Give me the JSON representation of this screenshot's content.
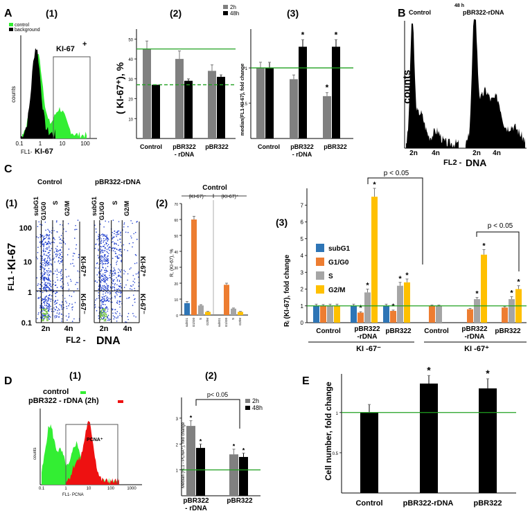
{
  "panel_letters": {
    "a": "A",
    "b": "B",
    "c": "C",
    "d": "D",
    "e": "E"
  },
  "sub_labels": {
    "one": "(1)",
    "two": "(2)",
    "three": "(3)"
  },
  "colors": {
    "gray": "#808080",
    "black": "#000000",
    "green": "#1fa01f",
    "lime": "#33ee33",
    "red": "#ee1111",
    "blue": "#2e75b6",
    "orange": "#ed7d31",
    "lightgray": "#a5a5a5",
    "yellow": "#ffc000",
    "scatter": "#1f3fcf"
  },
  "common": {
    "control": "Control",
    "pbr_rdna": "pBR322-rDNA",
    "pbr": "pBR322",
    "pbr_rdna_l1": "pBR322",
    "pbr_rdna_dash": "- rDNA",
    "pbr_rdna_dash2": "-rDNA",
    "h2": "2h",
    "h48": "48h",
    "h48_space": "48 h",
    "star": "*",
    "pval": "p < 0.05",
    "pval2": "p< 0.05",
    "n2": "2n",
    "n4": "4n",
    "counts": "counts"
  },
  "panelA": {
    "hist": {
      "legend": [
        "control",
        "background"
      ],
      "gate_label": "KI-67",
      "gate_sup": "+",
      "ylabel": "counts",
      "xlabel_small": "FL1-",
      "xlabel_big": "KI-67",
      "ticks": [
        "0.1",
        "1",
        "10",
        "100"
      ]
    },
    "bar2": {
      "ylabel": "( KI-67⁺), %",
      "yticks": [
        "10",
        "20",
        "30",
        "40",
        "50"
      ],
      "ylim": [
        0,
        55
      ]
    },
    "bar3": {
      "ylabel": "median(FL1-KI-67), fold change",
      "yticks": [
        "0.5",
        "1"
      ],
      "ylim": [
        0,
        1.55
      ]
    }
  },
  "panelB": {
    "title_control": "Control",
    "title_pbr": "pBR322-rDNA",
    "ylabel": "counts",
    "xlabel_small": "FL2 -",
    "xlabel_big": "DNA"
  },
  "panelC": {
    "scatter": {
      "left_title": "Control",
      "right_title": "pBR322-rDNA",
      "phases": [
        "subG1",
        "G1/G0",
        "S",
        "G2/M"
      ],
      "y_ticks": [
        "100",
        "10",
        "1",
        "0.1"
      ],
      "ylabel_small": "FL1 -",
      "ylabel_big": "KI-67",
      "xlabel_small": "FL2 -",
      "xlabel_big": "DNA",
      "ki_pos": "KI-67⁺",
      "ki_neg": "KI-67⁻"
    },
    "bar2": {
      "title": "Control",
      "group_neg": "(KI-67)⁻",
      "group_pos": "(KI-67)⁺",
      "ylabel": "R, (KI-67), %",
      "yticks": [
        "0",
        "10",
        "20",
        "30",
        "40",
        "50",
        "60",
        "70"
      ],
      "xcats": [
        "subG1",
        "G1/G0",
        "S",
        "G2/M",
        "subG1",
        "G1/G0",
        "S",
        "G2/M"
      ]
    },
    "bar3": {
      "legend": [
        "subG1",
        "G1/G0",
        "S",
        "G2/M"
      ],
      "ylabel": "Rᵢ (KI-67), fold change",
      "yticks": [
        "0",
        "1",
        "2",
        "3",
        "4",
        "5",
        "6",
        "7"
      ],
      "group_neg": "KI -67⁻",
      "group_pos": "KI -67⁺"
    }
  },
  "panelD": {
    "hist": {
      "legend_control": "control",
      "legend_treat": "pBR322 - rDNA (2h)",
      "gate_label": "PCNA⁺",
      "ylabel": "counts",
      "xlabel": "FL1- PCNA",
      "ticks": [
        "0.1",
        "1",
        "10",
        "100",
        "1000"
      ]
    },
    "bar": {
      "ylabel": "Median (FL1 - PCNA⁺), fold change",
      "yticks": [
        "1",
        "2",
        "3"
      ],
      "ylim": [
        0,
        3.8
      ]
    }
  },
  "panelE": {
    "ylabel": "Cell number, fold change",
    "yticks": [
      "0.5",
      "1"
    ],
    "ylim": [
      0,
      1.48
    ]
  },
  "chart_data": [
    {
      "type": "bar",
      "id": "A2",
      "title": "",
      "ylabel": "(KI-67+), %",
      "categories": [
        "Control",
        "pBR322 - rDNA",
        "pBR322"
      ],
      "series": [
        {
          "name": "2h",
          "values": [
            45,
            40,
            34
          ],
          "errors": [
            4,
            4,
            3
          ]
        },
        {
          "name": "48h",
          "values": [
            27,
            29,
            31
          ],
          "errors": [
            0,
            1,
            1
          ]
        }
      ],
      "reference_lines": [
        45,
        27
      ],
      "ylim": [
        0,
        55
      ]
    },
    {
      "type": "bar",
      "id": "A3",
      "ylabel": "median(FL1-KI-67), fold change",
      "categories": [
        "Control",
        "pBR322 - rDNA",
        "pBR322"
      ],
      "series": [
        {
          "name": "2h",
          "values": [
            1.0,
            0.84,
            0.6
          ],
          "errors": [
            0.08,
            0.06,
            0.05
          ]
        },
        {
          "name": "48h",
          "values": [
            1.0,
            1.3,
            1.3
          ],
          "errors": [
            0.08,
            0.1,
            0.1
          ]
        }
      ],
      "significant": [
        [
          false,
          false,
          true
        ],
        [
          false,
          true,
          true
        ]
      ],
      "reference_line": 1.0,
      "ylim": [
        0,
        1.55
      ]
    },
    {
      "type": "bar",
      "id": "C2",
      "title": "Control",
      "ylabel": "R, (KI-67), %",
      "categories": [
        "subG1",
        "G1/G0",
        "S",
        "G2/M",
        "subG1",
        "G1/G0",
        "S",
        "G2/M"
      ],
      "groups": [
        "(KI-67)-",
        "(KI-67)+"
      ],
      "values": [
        7.5,
        60,
        6,
        2,
        0,
        19,
        4,
        2
      ],
      "errors": [
        1,
        2,
        0.5,
        0.3,
        0,
        1,
        0.4,
        0.3
      ],
      "ylim": [
        0,
        70
      ]
    },
    {
      "type": "bar",
      "id": "C3",
      "ylabel": "Ri (KI-67), fold change",
      "categories": [
        "Control",
        "pBR322 -rDNA",
        "pBR322",
        "Control",
        "pBR322 -rDNA",
        "pBR322"
      ],
      "groups": [
        "KI -67-",
        "KI -67+"
      ],
      "series": [
        {
          "name": "subG1",
          "values": [
            1.0,
            1.0,
            1.0,
            0,
            0,
            0
          ],
          "errors": [
            0.1,
            0.1,
            0.1,
            0,
            0,
            0
          ]
        },
        {
          "name": "G1/G0",
          "values": [
            1.0,
            0.6,
            0.7,
            1.0,
            0.8,
            0.9
          ],
          "errors": [
            0.08,
            0.05,
            0.05,
            0.05,
            0.05,
            0.05
          ]
        },
        {
          "name": "S",
          "values": [
            1.0,
            1.8,
            2.2,
            1.0,
            1.4,
            1.4
          ],
          "errors": [
            0.1,
            0.2,
            0.2,
            0.05,
            0.1,
            0.15
          ]
        },
        {
          "name": "G2/M",
          "values": [
            1.0,
            7.5,
            2.4,
            0,
            4.05,
            2.0
          ],
          "errors": [
            0.1,
            0.5,
            0.2,
            0,
            0.3,
            0.2
          ]
        }
      ],
      "annotations": [
        "p < 0.05",
        "p < 0.05"
      ],
      "reference_line": 1.0,
      "ylim": [
        0,
        8
      ]
    },
    {
      "type": "bar",
      "id": "D2",
      "ylabel": "Median (FL1 - PCNA+), fold change",
      "categories": [
        "pBR322 - rDNA",
        "pBR322"
      ],
      "series": [
        {
          "name": "2h",
          "values": [
            2.7,
            1.6
          ],
          "errors": [
            0.2,
            0.2
          ]
        },
        {
          "name": "48h",
          "values": [
            1.85,
            1.5
          ],
          "errors": [
            0.15,
            0.15
          ]
        }
      ],
      "annotation": "p< 0.05",
      "reference_line": 1.0,
      "ylim": [
        0,
        3.8
      ]
    },
    {
      "type": "bar",
      "id": "E",
      "ylabel": "Cell number, fold change",
      "categories": [
        "Control",
        "pBR322-rDNA",
        "pBR322"
      ],
      "values": [
        1.0,
        1.36,
        1.3
      ],
      "errors": [
        0.1,
        0.1,
        0.12
      ],
      "significant": [
        false,
        true,
        true
      ],
      "reference_line": 1.0,
      "ylim": [
        0,
        1.48
      ]
    }
  ]
}
